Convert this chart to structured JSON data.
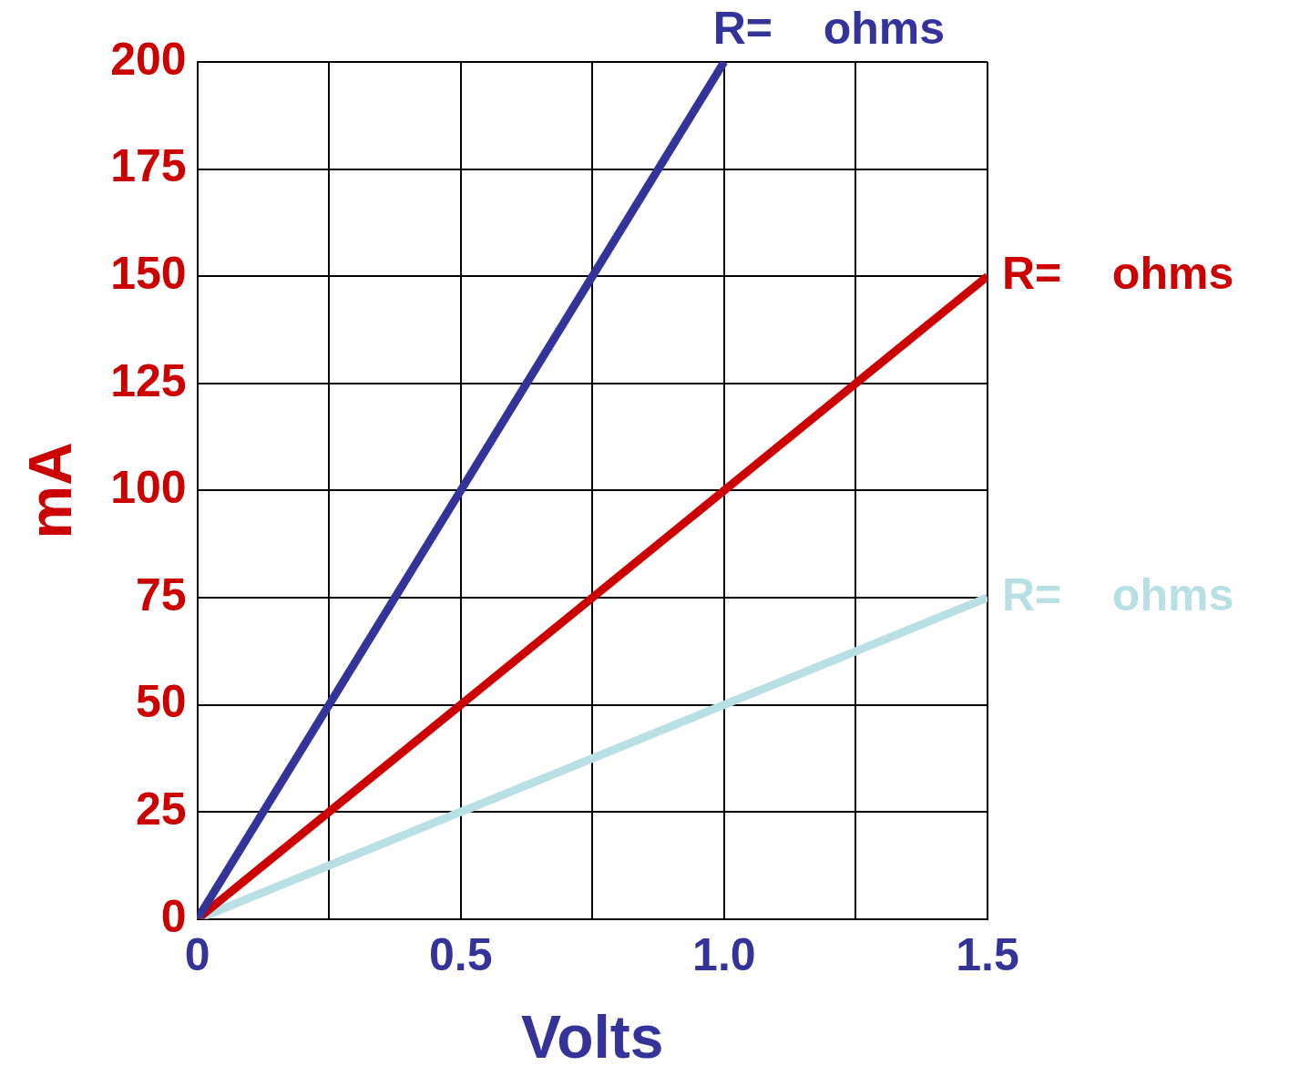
{
  "chart_data": {
    "type": "line",
    "xlabel": "Volts",
    "ylabel": "mA",
    "xlim": [
      0,
      1.5
    ],
    "ylim": [
      0,
      200
    ],
    "xticks": [
      0,
      {
        "value": 0.25,
        "label": null
      },
      0.5,
      {
        "value": 0.75,
        "label": null
      },
      {
        "value": 1,
        "label": "1.0"
      },
      {
        "value": 1.25,
        "label": null
      },
      1.5
    ],
    "yticks": [
      0,
      25,
      50,
      75,
      100,
      125,
      150,
      175,
      200
    ],
    "grid": true,
    "legend": false,
    "series": [
      {
        "name": "R=    ohms",
        "color": "#333399",
        "x": [
          0,
          1
        ],
        "values": [
          0,
          200
        ]
      },
      {
        "name": "R=    ohms",
        "color": "#cc0000",
        "x": [
          0,
          1.5
        ],
        "values": [
          0,
          150
        ]
      },
      {
        "name": "R=    ohms",
        "color": "#b8dfe3",
        "x": [
          0,
          1.5
        ],
        "values": [
          0,
          75
        ]
      }
    ]
  }
}
